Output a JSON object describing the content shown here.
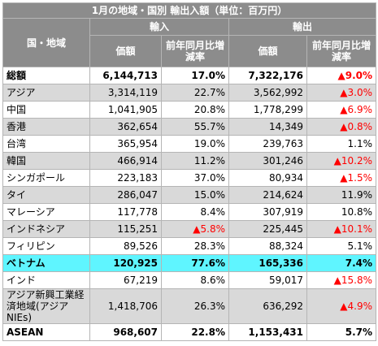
{
  "title": "1月の地域・国別 輸出入額（単位：百万円）",
  "headers": {
    "region": "国・地域",
    "import": "輸入",
    "export": "輸出",
    "value": "価額",
    "change": "前年同月比増減率"
  },
  "rows": [
    {
      "name": "総額",
      "imp": "6,144,713",
      "impc": "17.0%",
      "exp": "7,322,176",
      "expc": "▲9.0%",
      "style": "w b",
      "expneg": true
    },
    {
      "name": "アジア",
      "imp": "3,314,119",
      "impc": "22.7%",
      "exp": "3,562,992",
      "expc": "▲3.0%",
      "style": "g",
      "expneg": true
    },
    {
      "name": "中国",
      "imp": "1,041,905",
      "impc": "20.8%",
      "exp": "1,778,299",
      "expc": "▲6.9%",
      "style": "w",
      "expneg": true
    },
    {
      "name": "香港",
      "imp": "362,654",
      "impc": "55.7%",
      "exp": "14,349",
      "expc": "▲0.8%",
      "style": "g",
      "expneg": true
    },
    {
      "name": "台湾",
      "imp": "365,954",
      "impc": "19.0%",
      "exp": "239,763",
      "expc": "1.1%",
      "style": "w"
    },
    {
      "name": "韓国",
      "imp": "466,914",
      "impc": "11.2%",
      "exp": "301,246",
      "expc": "▲10.2%",
      "style": "g",
      "expneg": true
    },
    {
      "name": "シンガポール",
      "imp": "223,183",
      "impc": "37.0%",
      "exp": "80,934",
      "expc": "▲1.5%",
      "style": "w",
      "expneg": true
    },
    {
      "name": "タイ",
      "imp": "286,047",
      "impc": "15.0%",
      "exp": "214,624",
      "expc": "11.9%",
      "style": "g"
    },
    {
      "name": "マレーシア",
      "imp": "117,778",
      "impc": "8.4%",
      "exp": "307,919",
      "expc": "10.8%",
      "style": "w"
    },
    {
      "name": "インドネシア",
      "imp": "115,251",
      "impc": "▲5.8%",
      "exp": "225,445",
      "expc": "▲10.1%",
      "style": "g",
      "impneg": true,
      "expneg": true
    },
    {
      "name": "フィリピン",
      "imp": "89,526",
      "impc": "28.3%",
      "exp": "88,324",
      "expc": "5.1%",
      "style": "w"
    },
    {
      "name": "ベトナム",
      "imp": "120,925",
      "impc": "77.6%",
      "exp": "165,336",
      "expc": "7.4%",
      "style": "hl"
    },
    {
      "name": "インド",
      "imp": "67,219",
      "impc": "8.6%",
      "exp": "59,017",
      "expc": "▲15.8%",
      "style": "w",
      "expneg": true
    },
    {
      "name": "アジア新興工業経済地域(アジアNIEs)",
      "imp": "1,418,706",
      "impc": "26.3%",
      "exp": "636,292",
      "expc": "▲4.9%",
      "style": "g tall",
      "expneg": true
    },
    {
      "name": "ASEAN",
      "imp": "968,607",
      "impc": "22.8%",
      "exp": "1,153,431",
      "expc": "5.7%",
      "style": "w b"
    }
  ]
}
